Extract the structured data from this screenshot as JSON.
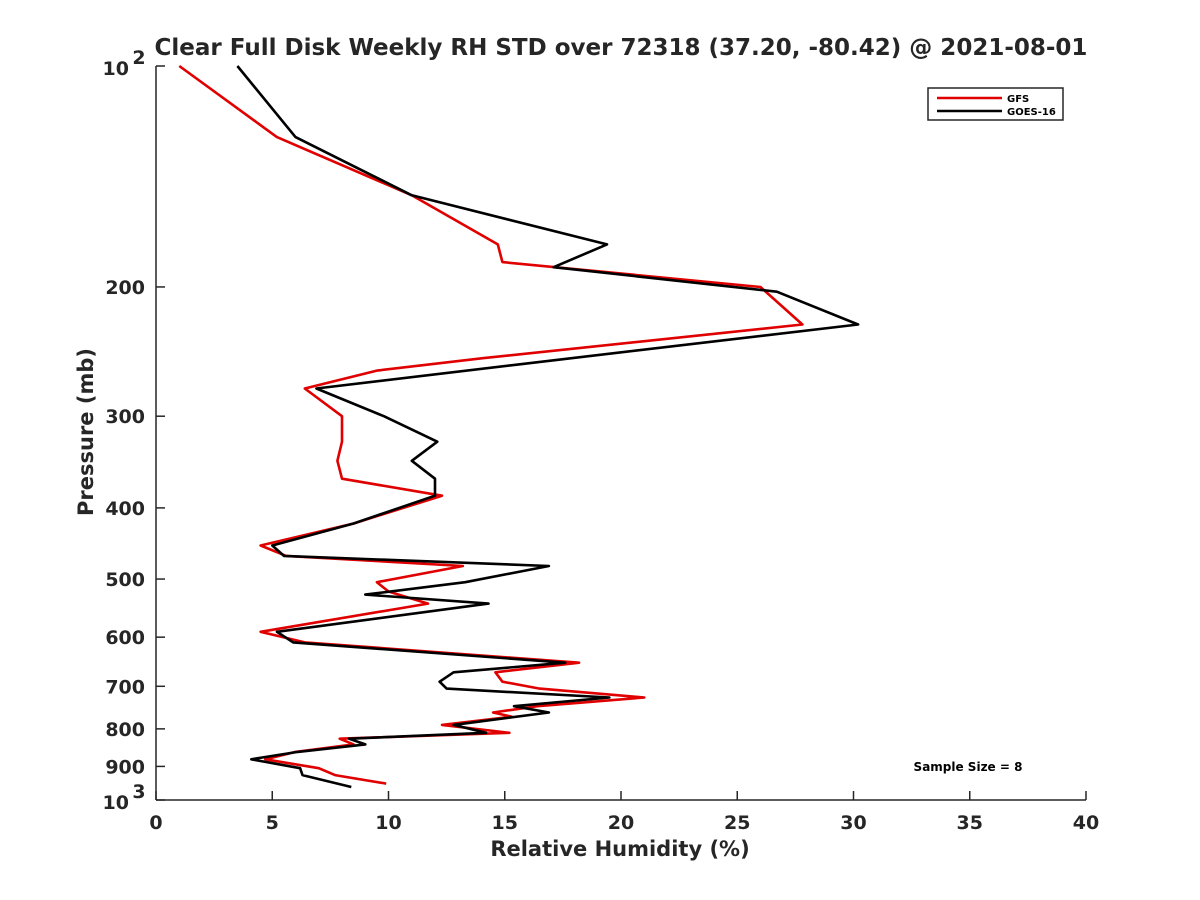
{
  "chart_data": {
    "type": "line",
    "title": "Clear Full Disk Weekly RH STD over 72318 (37.20, -80.42) @ 2021-08-01",
    "xlabel": "Relative Humidity (%)",
    "ylabel": "Pressure (mb)",
    "xlim": [
      0,
      40
    ],
    "ylim": [
      100,
      1000
    ],
    "y_scale": "log",
    "y_reversed": true,
    "x_ticks": [
      "0",
      "5",
      "10",
      "15",
      "20",
      "25",
      "30",
      "35",
      "40"
    ],
    "y_ticks": [
      {
        "value": 100,
        "base": "10",
        "exp": "2"
      },
      {
        "value": 200,
        "label": "200"
      },
      {
        "value": 300,
        "label": "300"
      },
      {
        "value": 400,
        "label": "400"
      },
      {
        "value": 500,
        "label": "500"
      },
      {
        "value": 600,
        "label": "600"
      },
      {
        "value": 700,
        "label": "700"
      },
      {
        "value": 800,
        "label": "800"
      },
      {
        "value": 900,
        "label": "900"
      },
      {
        "value": 1000,
        "base": "10",
        "exp": "3"
      }
    ],
    "legend_position": "top-right",
    "grid": false,
    "annotation": "Sample Size = 8",
    "series": [
      {
        "name": "GFS",
        "color": "#e00000",
        "points": [
          [
            1.0,
            100
          ],
          [
            5.2,
            125
          ],
          [
            11.0,
            150
          ],
          [
            14.7,
            175
          ],
          [
            14.9,
            185
          ],
          [
            26.0,
            200
          ],
          [
            27.8,
            225
          ],
          [
            14.1,
            250
          ],
          [
            9.5,
            260
          ],
          [
            6.4,
            275
          ],
          [
            8.0,
            300
          ],
          [
            8.0,
            325
          ],
          [
            7.8,
            345
          ],
          [
            8.0,
            365
          ],
          [
            12.3,
            385
          ],
          [
            8.5,
            420
          ],
          [
            4.5,
            450
          ],
          [
            5.6,
            465
          ],
          [
            13.2,
            480
          ],
          [
            9.5,
            505
          ],
          [
            10.0,
            520
          ],
          [
            11.7,
            540
          ],
          [
            4.5,
            590
          ],
          [
            6.4,
            610
          ],
          [
            18.2,
            650
          ],
          [
            14.6,
            670
          ],
          [
            14.9,
            690
          ],
          [
            16.5,
            705
          ],
          [
            21.0,
            725
          ],
          [
            16.4,
            745
          ],
          [
            14.5,
            760
          ],
          [
            15.3,
            770
          ],
          [
            12.3,
            790
          ],
          [
            15.2,
            810
          ],
          [
            7.9,
            825
          ],
          [
            8.5,
            840
          ],
          [
            6.0,
            860
          ],
          [
            4.7,
            880
          ],
          [
            7.0,
            905
          ],
          [
            7.7,
            925
          ],
          [
            9.9,
            950
          ]
        ]
      },
      {
        "name": "GOES-16",
        "color": "#000000",
        "points": [
          [
            3.5,
            100
          ],
          [
            6.0,
            125
          ],
          [
            11.0,
            150
          ],
          [
            19.4,
            175
          ],
          [
            17.1,
            188
          ],
          [
            26.7,
            203
          ],
          [
            30.2,
            225
          ],
          [
            15.6,
            255
          ],
          [
            6.9,
            275
          ],
          [
            9.8,
            300
          ],
          [
            12.1,
            325
          ],
          [
            11.0,
            345
          ],
          [
            12.0,
            365
          ],
          [
            12.0,
            385
          ],
          [
            8.5,
            420
          ],
          [
            5.0,
            450
          ],
          [
            5.5,
            465
          ],
          [
            16.9,
            480
          ],
          [
            13.3,
            505
          ],
          [
            9.0,
            525
          ],
          [
            14.3,
            540
          ],
          [
            5.2,
            590
          ],
          [
            5.9,
            610
          ],
          [
            17.6,
            650
          ],
          [
            12.8,
            670
          ],
          [
            12.2,
            690
          ],
          [
            12.5,
            705
          ],
          [
            19.5,
            725
          ],
          [
            15.4,
            745
          ],
          [
            16.9,
            760
          ],
          [
            12.8,
            790
          ],
          [
            14.2,
            810
          ],
          [
            8.3,
            825
          ],
          [
            9.0,
            840
          ],
          [
            6.1,
            860
          ],
          [
            4.1,
            880
          ],
          [
            6.2,
            905
          ],
          [
            6.3,
            925
          ],
          [
            8.4,
            960
          ]
        ]
      }
    ]
  }
}
